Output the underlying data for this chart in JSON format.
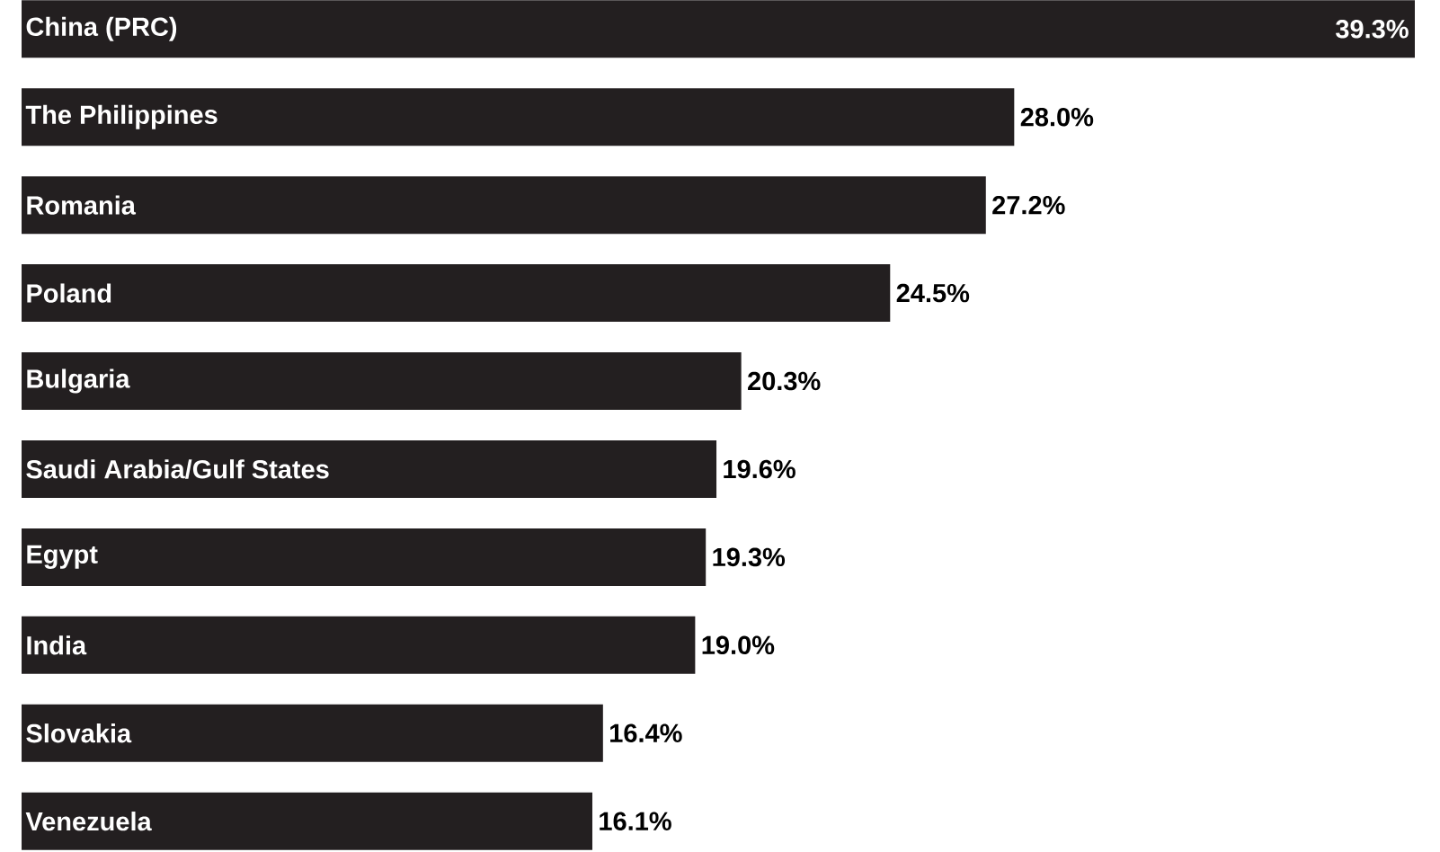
{
  "chart_data": {
    "type": "bar",
    "orientation": "horizontal",
    "color": "#231f20",
    "categories": [
      "China (PRC)",
      "The Philippines",
      "Romania",
      "Poland",
      "Bulgaria",
      "Saudi Arabia/Gulf States",
      "Egypt",
      "India",
      "Slovakia",
      "Venezuela"
    ],
    "values": [
      39.3,
      28.0,
      27.2,
      24.5,
      20.3,
      19.6,
      19.3,
      19.0,
      16.4,
      16.1
    ],
    "value_labels": [
      "39.3%",
      "28.0%",
      "27.2%",
      "24.5%",
      "20.3%",
      "19.6%",
      "19.3%",
      "19.0%",
      "16.4%",
      "16.1%"
    ]
  }
}
